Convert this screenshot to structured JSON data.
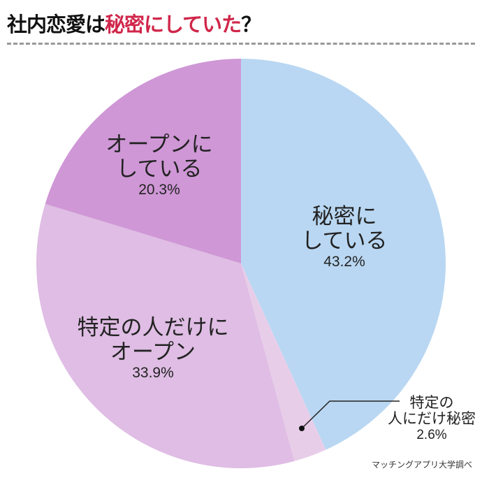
{
  "title": {
    "prefix": "社内恋愛は",
    "highlight": "秘密にしていた",
    "suffix": "？",
    "highlight_color": "#d0264a"
  },
  "source": "マッチングアプリ大学調べ",
  "chart_data": {
    "type": "pie",
    "title": "社内恋愛は秘密にしていた？",
    "start": "12 o'clock, clockwise",
    "slices": [
      {
        "label_line1": "秘密に",
        "label_line2": "している",
        "value": 43.2,
        "pct": "43.2%",
        "color": "#b9d7f2"
      },
      {
        "label_line1": "特定の",
        "label_line2": "人にだけ秘密",
        "value": 2.6,
        "pct": "2.6%",
        "color": "#e8cde9"
      },
      {
        "label_line1": "特定の人だけに",
        "label_line2": "オープン",
        "value": 33.9,
        "pct": "33.9%",
        "color": "#dfbde4"
      },
      {
        "label_line1": "オープンに",
        "label_line2": "している",
        "value": 20.3,
        "pct": "20.3%",
        "color": "#cf97d6"
      }
    ]
  }
}
